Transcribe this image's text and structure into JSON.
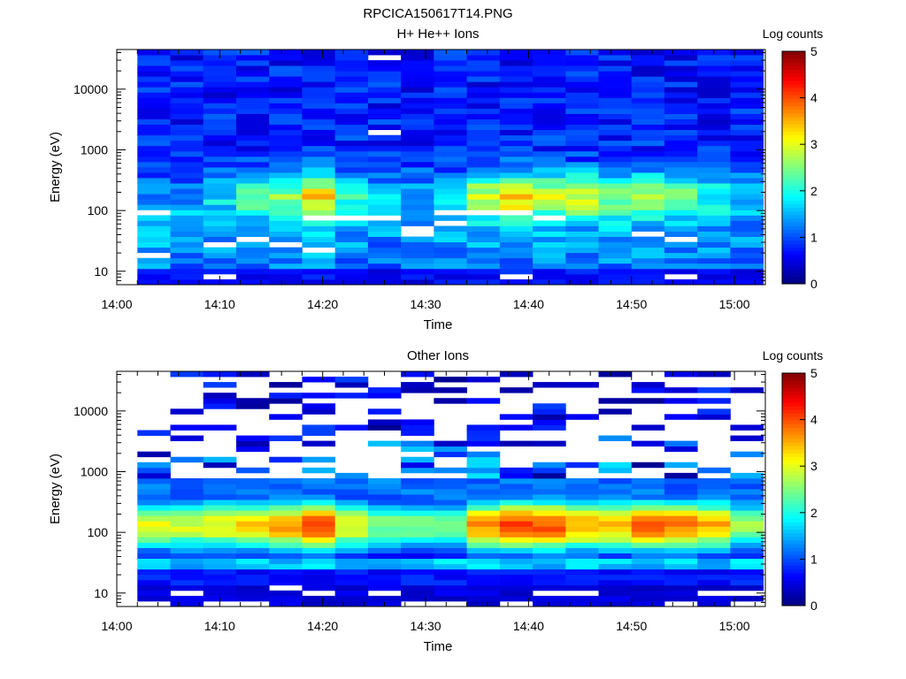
{
  "title": "RPCICA150617T14.PNG",
  "colorbar": {
    "label": "Log counts",
    "ticks": [
      "0",
      "1",
      "2",
      "3",
      "4",
      "5"
    ],
    "range": [
      0,
      5
    ],
    "colormap": "jet"
  },
  "chart_data": [
    {
      "type": "heatmap",
      "title": "H+ He++ Ions",
      "xlabel": "Time",
      "ylabel": "Energy (eV)",
      "yscale": "log",
      "xlim": [
        "14:00",
        "15:03"
      ],
      "ylim": [
        6,
        45000
      ],
      "x_tick_labels": [
        "14:00",
        "14:10",
        "14:20",
        "14:30",
        "14:40",
        "14:50",
        "15:00"
      ],
      "y_tick_labels": [
        "10",
        "100",
        "1000",
        "10000"
      ],
      "x_start": "14:02",
      "x_step_minutes": 3.2,
      "n_columns": 19,
      "colorbar_label": "Log counts",
      "value_range": [
        0,
        5
      ],
      "profiles": [
        {
          "label": "background",
          "energy_eV": 50,
          "width": 0.9,
          "peaks": [
            0.8,
            0.7,
            0.6,
            0.7,
            0.7,
            0.8,
            0.7,
            0.6,
            0.7,
            0.7,
            0.8,
            0.8,
            0.8,
            0.7,
            0.7,
            0.7,
            0.7,
            0.7,
            0.6
          ]
        },
        {
          "label": "peak",
          "energy_eV": 180,
          "width": 0.35,
          "peaks": [
            0.0,
            0.2,
            0.6,
            1.0,
            1.4,
            2.0,
            0.9,
            0.4,
            0.3,
            0.6,
            1.5,
            2.2,
            1.6,
            1.7,
            1.4,
            1.5,
            1.3,
            0.8,
            0.4
          ]
        }
      ],
      "gaps": [
        {
          "col": 0,
          "energy_eV": 90
        },
        {
          "col": 0,
          "energy_eV": 20
        },
        {
          "col": 2,
          "energy_eV": 8
        },
        {
          "col": 2,
          "energy_eV": 30
        },
        {
          "col": 3,
          "energy_eV": 33
        },
        {
          "col": 4,
          "energy_eV": 27
        },
        {
          "col": 5,
          "energy_eV": 22
        },
        {
          "col": 5,
          "energy_eV": 80
        },
        {
          "col": 6,
          "energy_eV": 80
        },
        {
          "col": 7,
          "energy_eV": 36000
        },
        {
          "col": 7,
          "energy_eV": 2000
        },
        {
          "col": 7,
          "energy_eV": 80
        },
        {
          "col": 8,
          "energy_eV": 55
        },
        {
          "col": 8,
          "energy_eV": 45
        },
        {
          "col": 9,
          "energy_eV": 85
        },
        {
          "col": 9,
          "energy_eV": 60
        },
        {
          "col": 10,
          "energy_eV": 85
        },
        {
          "col": 11,
          "energy_eV": 85
        },
        {
          "col": 11,
          "energy_eV": 9
        },
        {
          "col": 12,
          "energy_eV": 70
        },
        {
          "col": 15,
          "energy_eV": 38
        },
        {
          "col": 16,
          "energy_eV": 35
        },
        {
          "col": 16,
          "energy_eV": 9
        }
      ]
    },
    {
      "type": "heatmap",
      "title": "Other Ions",
      "xlabel": "Time",
      "ylabel": "Energy (eV)",
      "yscale": "log",
      "xlim": [
        "14:00",
        "15:03"
      ],
      "ylim": [
        6,
        45000
      ],
      "x_tick_labels": [
        "14:00",
        "14:10",
        "14:20",
        "14:30",
        "14:40",
        "14:50",
        "15:00"
      ],
      "y_tick_labels": [
        "10",
        "100",
        "1000",
        "10000"
      ],
      "x_start": "14:02",
      "x_step_minutes": 3.2,
      "n_columns": 19,
      "colorbar_label": "Log counts",
      "value_range": [
        0,
        5
      ],
      "profiles": [
        {
          "label": "peak",
          "energy_eV": 130,
          "width": 0.45,
          "peaks": [
            3.0,
            2.9,
            3.1,
            3.3,
            3.6,
            4.2,
            3.1,
            2.5,
            2.5,
            2.4,
            3.6,
            4.2,
            4.0,
            3.6,
            3.5,
            3.9,
            3.8,
            3.5,
            2.6
          ]
        }
      ],
      "low_energy_floor": [
        {
          "energy_eV": 30,
          "value": 1.3
        },
        {
          "energy_eV": 18,
          "value": 0.5
        },
        {
          "energy_eV": 11,
          "value": 0.3
        }
      ],
      "high_energy_lines": {
        "energy_min_eV": 800,
        "energy_max_eV": 40000,
        "value_range": [
          0.1,
          1.8
        ]
      },
      "gaps_low": [
        {
          "col": 0,
          "energy_eV": 7
        },
        {
          "col": 1,
          "energy_eV": 10
        },
        {
          "col": 2,
          "energy_eV": 7
        },
        {
          "col": 3,
          "energy_eV": 7
        },
        {
          "col": 4,
          "energy_eV": 13
        },
        {
          "col": 5,
          "energy_eV": 10
        },
        {
          "col": 7,
          "energy_eV": 10
        },
        {
          "col": 8,
          "energy_eV": 7
        },
        {
          "col": 9,
          "energy_eV": 7
        },
        {
          "col": 11,
          "energy_eV": 7
        },
        {
          "col": 12,
          "energy_eV": 10
        },
        {
          "col": 13,
          "energy_eV": 10
        },
        {
          "col": 16,
          "energy_eV": 7
        },
        {
          "col": 17,
          "energy_eV": 10
        },
        {
          "col": 18,
          "energy_eV": 10
        },
        {
          "col": 18,
          "energy_eV": 7
        }
      ]
    }
  ]
}
